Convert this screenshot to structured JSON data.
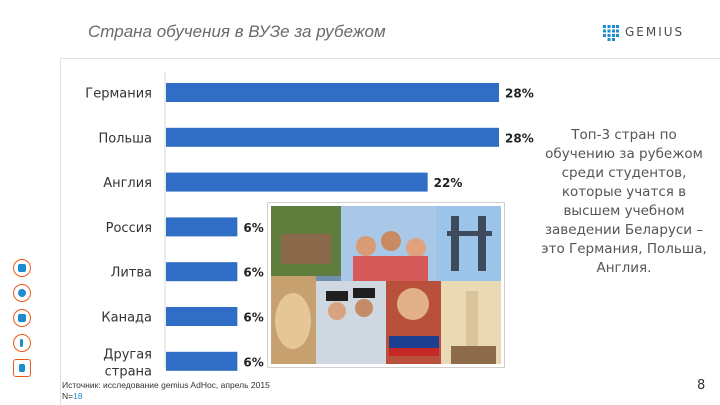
{
  "header": {
    "title": "Страна обучения в ВУЗе за рубежом",
    "logo_text": "GEMIUS"
  },
  "colors": {
    "bar": "#2f6ec4",
    "accent_orange": "#ea5b1b",
    "accent_blue": "#1f8ccf"
  },
  "side_icons": [
    "people-icon",
    "globe-icon",
    "list-icon",
    "wrench-icon",
    "document-icon"
  ],
  "chart_data": {
    "type": "bar",
    "orientation": "horizontal",
    "categories": [
      "Германия",
      "Польша",
      "Англия",
      "Россия",
      "Литва",
      "Канада",
      "Другая страна"
    ],
    "values": [
      28,
      28,
      22,
      6,
      6,
      6,
      6
    ],
    "value_labels": [
      "28%",
      "28%",
      "22%",
      "6%",
      "6%",
      "6%",
      "6%"
    ],
    "unit": "%",
    "xlim": [
      0,
      30
    ],
    "grid": false,
    "legend": "none"
  },
  "note": "Топ-3 стран по обучению за рубежом среди студентов, которые учатся в высшем учебном заведении Беларуси – это Германия, Польша, Англия.",
  "source": {
    "text": "Источник: исследование gemius AdHoc, апрель 2015",
    "n_label": "N=",
    "n_value": "18"
  },
  "page_number": "8"
}
